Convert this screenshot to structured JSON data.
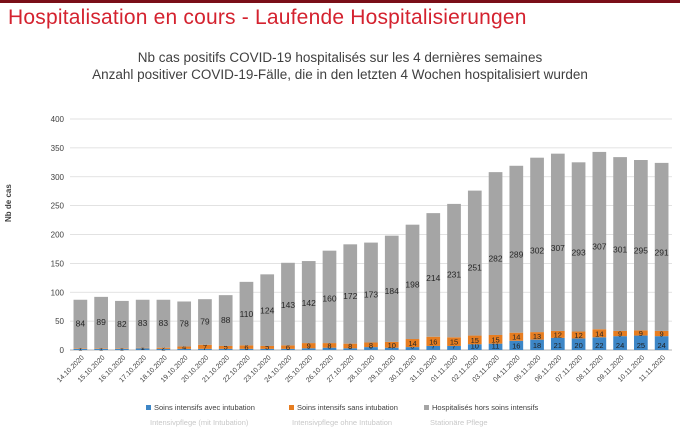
{
  "slide_title": "Hospitalisation en cours - Laufende Hospitalisierungen",
  "colors": {
    "accent_red": "#d4222f",
    "intubation": "#3d86c6",
    "sans_intubation": "#e67d21",
    "hors_soins": "#a5a5a5"
  },
  "chart_data": {
    "type": "bar",
    "stacked": true,
    "title": "Nb cas positifs COVID-19 hospitalisés sur les 4 dernières semaines",
    "subtitle": "Anzahl positiver COVID-19-Fälle, die in den letzten 4 Wochen hospitalisiert wurden",
    "xlabel": "",
    "ylabel": "Nb de cas",
    "ylim": [
      0,
      400
    ],
    "yticks": [
      0,
      50,
      100,
      150,
      200,
      250,
      300,
      350,
      400
    ],
    "grid": true,
    "legend_position": "bottom",
    "categories": [
      "14.10.2020",
      "15.10.2020",
      "16.10.2020",
      "17.10.2020",
      "18.10.2020",
      "19.10.2020",
      "20.10.2020",
      "21.10.2020",
      "22.10.2020",
      "23.10.2020",
      "24.10.2020",
      "25.10.2020",
      "26.10.2020",
      "27.10.2020",
      "28.10.2020",
      "29.10.2020",
      "30.10.2020",
      "31.10.2020",
      "01.11.2020",
      "02.11.2020",
      "03.11.2020",
      "04.11.2020",
      "05.11.2020",
      "06.11.2020",
      "07.11.2020",
      "08.11.2020",
      "09.11.2020",
      "10.11.2020",
      "11.11.2020"
    ],
    "series": [
      {
        "name": "Soins intensifs avec intubation",
        "color": "#3d86c6",
        "values": [
          2,
          2,
          2,
          3,
          2,
          2,
          2,
          2,
          2,
          2,
          2,
          3,
          4,
          3,
          5,
          4,
          5,
          7,
          7,
          10,
          11,
          16,
          18,
          21,
          20,
          22,
          24,
          25,
          24
        ]
      },
      {
        "name": "Soins intensifs sans intubation",
        "color": "#e67d21",
        "values": [
          1,
          1,
          1,
          1,
          2,
          4,
          7,
          5,
          6,
          5,
          6,
          9,
          8,
          8,
          8,
          10,
          14,
          16,
          15,
          15,
          15,
          14,
          13,
          12,
          12,
          14,
          9,
          9,
          9
        ]
      },
      {
        "name": "Hospitalisés hors soins intensifs",
        "color": "#a5a5a5",
        "values": [
          84,
          89,
          82,
          83,
          83,
          78,
          79,
          88,
          110,
          124,
          143,
          142,
          160,
          172,
          173,
          184,
          198,
          214,
          231,
          251,
          282,
          289,
          302,
          307,
          293,
          307,
          301,
          295,
          291
        ]
      }
    ]
  },
  "faded_row": [
    "Intensivpflege (mit Intubation)",
    "Intensivpflege ohne Intubation",
    "Stationäre Pflege"
  ]
}
